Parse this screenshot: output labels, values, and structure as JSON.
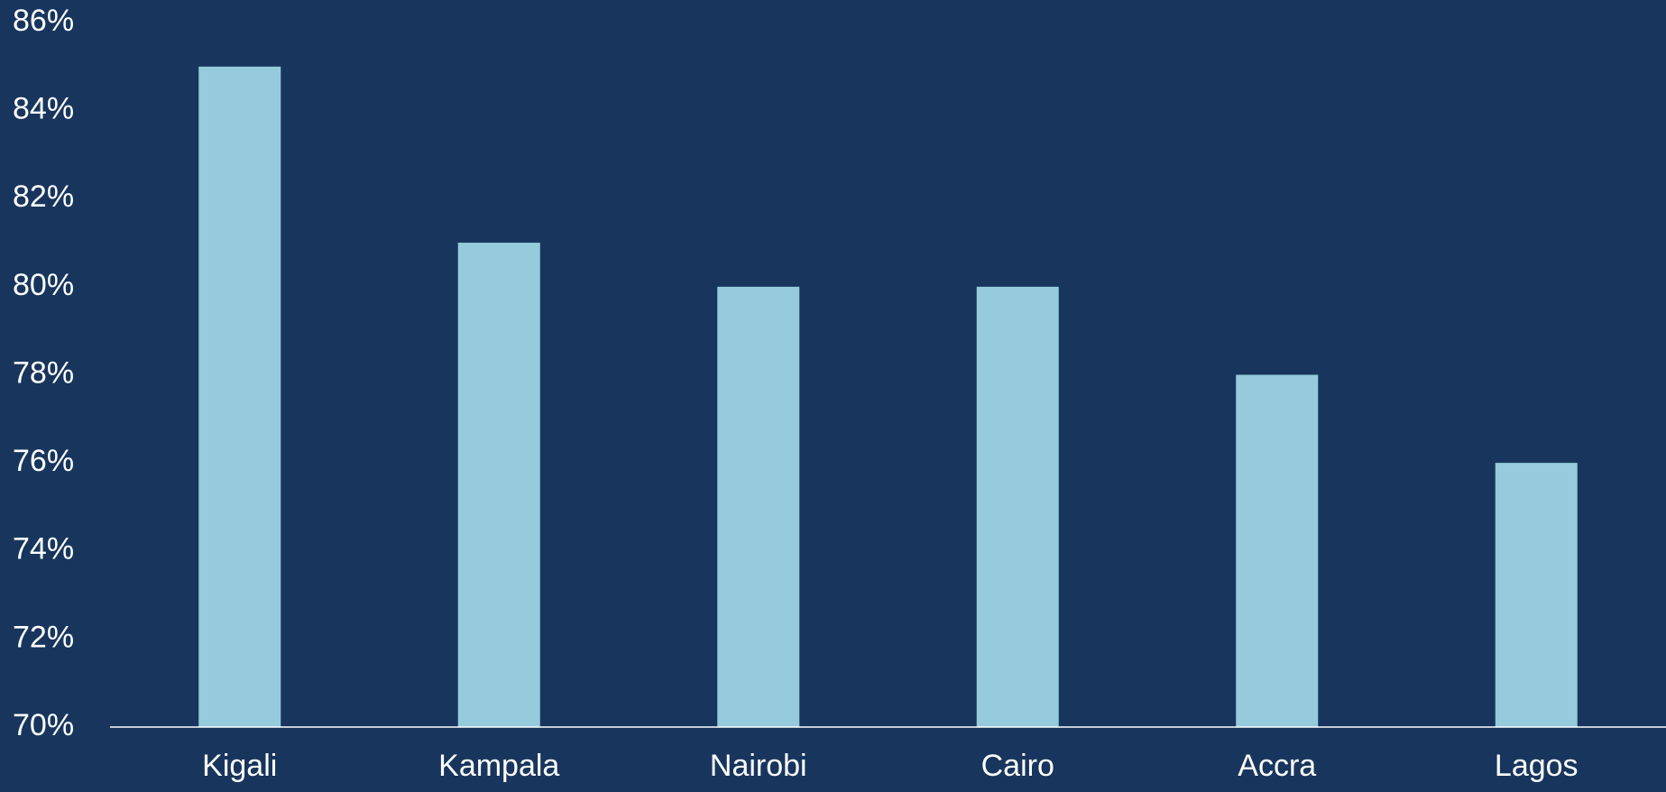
{
  "chart_data": {
    "type": "bar",
    "categories": [
      "Kigali",
      "Kampala",
      "Nairobi",
      "Cairo",
      "Accra",
      "Lagos"
    ],
    "values": [
      85,
      81,
      80,
      80,
      78,
      76
    ],
    "ylim": [
      70,
      86
    ],
    "yticks": [
      70,
      72,
      74,
      76,
      78,
      80,
      82,
      84,
      86
    ],
    "ytick_format": "{v}%",
    "grid": false,
    "legend": "none",
    "title": "",
    "xlabel": "",
    "ylabel": ""
  },
  "colors": {
    "background": "#18365d",
    "bar": "#95cbdc",
    "axis_line": "#ffffff",
    "text": "#ffffff"
  }
}
